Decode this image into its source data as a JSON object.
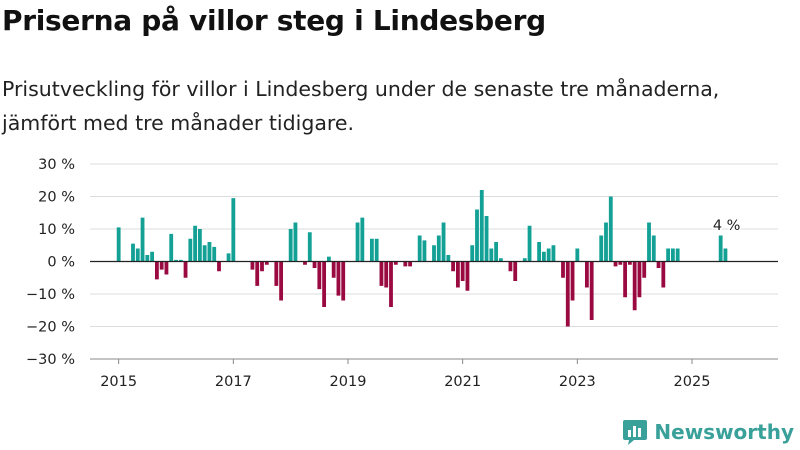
{
  "header": {
    "title": "Priserna på villor steg i Lindesberg",
    "subtitle": "Prisutveckling för villor i Lindesberg under de senaste tre månaderna, jämfört med tre månader tidigare."
  },
  "brand": {
    "name": "Newsworthy",
    "icon": "bar-chart-logo-icon",
    "color": "#3aa09a"
  },
  "colors": {
    "positive": "#13a196",
    "negative": "#9a0a41",
    "grid": "#dddddd",
    "zero_line": "#222222"
  },
  "chart_data": {
    "type": "bar",
    "ylim": [
      -30,
      30
    ],
    "yticks": [
      30,
      20,
      10,
      0,
      -10,
      -20,
      -30
    ],
    "ytick_labels": [
      "30 %",
      "20 %",
      "10 %",
      "0 %",
      "−10 %",
      "−20 %",
      "−30 %"
    ],
    "xlim": [
      "2014-07",
      "2026-07"
    ],
    "xticks": [
      "2015-01",
      "2017-01",
      "2019-01",
      "2021-01",
      "2023-01",
      "2025-01"
    ],
    "xtick_labels": [
      "2015",
      "2017",
      "2019",
      "2021",
      "2023",
      "2025"
    ],
    "grid": true,
    "annotation": {
      "x": "2025-07",
      "text": "4 %"
    },
    "series": [
      {
        "values": [
          {
            "x": "2015-01",
            "y": 10.5
          },
          {
            "x": "2015-04",
            "y": 5.5
          },
          {
            "x": "2015-05",
            "y": 4
          },
          {
            "x": "2015-06",
            "y": 13.5
          },
          {
            "x": "2015-07",
            "y": 2
          },
          {
            "x": "2015-08",
            "y": 3
          },
          {
            "x": "2015-09",
            "y": -5.5
          },
          {
            "x": "2015-10",
            "y": -2.5
          },
          {
            "x": "2015-11",
            "y": -4
          },
          {
            "x": "2015-12",
            "y": 8.5
          },
          {
            "x": "2016-01",
            "y": 0.5
          },
          {
            "x": "2016-02",
            "y": 0.5
          },
          {
            "x": "2016-03",
            "y": -5
          },
          {
            "x": "2016-04",
            "y": 7
          },
          {
            "x": "2016-05",
            "y": 11
          },
          {
            "x": "2016-06",
            "y": 10
          },
          {
            "x": "2016-07",
            "y": 5
          },
          {
            "x": "2016-08",
            "y": 6
          },
          {
            "x": "2016-09",
            "y": 4.5
          },
          {
            "x": "2016-10",
            "y": -3
          },
          {
            "x": "2016-12",
            "y": 2.5
          },
          {
            "x": "2017-01",
            "y": 19.5
          },
          {
            "x": "2017-05",
            "y": -2.5
          },
          {
            "x": "2017-06",
            "y": -7.5
          },
          {
            "x": "2017-07",
            "y": -3
          },
          {
            "x": "2017-08",
            "y": -1
          },
          {
            "x": "2017-10",
            "y": -7.5
          },
          {
            "x": "2017-11",
            "y": -12
          },
          {
            "x": "2018-01",
            "y": 10
          },
          {
            "x": "2018-02",
            "y": 12
          },
          {
            "x": "2018-04",
            "y": -1
          },
          {
            "x": "2018-05",
            "y": 9
          },
          {
            "x": "2018-06",
            "y": -2
          },
          {
            "x": "2018-07",
            "y": -8.5
          },
          {
            "x": "2018-08",
            "y": -14
          },
          {
            "x": "2018-09",
            "y": 1.5
          },
          {
            "x": "2018-10",
            "y": -5
          },
          {
            "x": "2018-11",
            "y": -10.5
          },
          {
            "x": "2018-12",
            "y": -12
          },
          {
            "x": "2019-03",
            "y": 12
          },
          {
            "x": "2019-04",
            "y": 13.5
          },
          {
            "x": "2019-06",
            "y": 7
          },
          {
            "x": "2019-07",
            "y": 7
          },
          {
            "x": "2019-08",
            "y": -7.5
          },
          {
            "x": "2019-09",
            "y": -8
          },
          {
            "x": "2019-10",
            "y": -14
          },
          {
            "x": "2019-11",
            "y": -1
          },
          {
            "x": "2020-01",
            "y": -1.5
          },
          {
            "x": "2020-02",
            "y": -1.5
          },
          {
            "x": "2020-04",
            "y": 8
          },
          {
            "x": "2020-05",
            "y": 6.5
          },
          {
            "x": "2020-07",
            "y": 5
          },
          {
            "x": "2020-08",
            "y": 8
          },
          {
            "x": "2020-09",
            "y": 12
          },
          {
            "x": "2020-10",
            "y": 2
          },
          {
            "x": "2020-11",
            "y": -3
          },
          {
            "x": "2020-12",
            "y": -8
          },
          {
            "x": "2021-01",
            "y": -6
          },
          {
            "x": "2021-02",
            "y": -9
          },
          {
            "x": "2021-03",
            "y": 5
          },
          {
            "x": "2021-04",
            "y": 16
          },
          {
            "x": "2021-05",
            "y": 22
          },
          {
            "x": "2021-06",
            "y": 14
          },
          {
            "x": "2021-07",
            "y": 4
          },
          {
            "x": "2021-08",
            "y": 6
          },
          {
            "x": "2021-09",
            "y": 1
          },
          {
            "x": "2021-11",
            "y": -3
          },
          {
            "x": "2021-12",
            "y": -6
          },
          {
            "x": "2022-02",
            "y": 1
          },
          {
            "x": "2022-03",
            "y": 11
          },
          {
            "x": "2022-05",
            "y": 6
          },
          {
            "x": "2022-06",
            "y": 3
          },
          {
            "x": "2022-07",
            "y": 4
          },
          {
            "x": "2022-08",
            "y": 5
          },
          {
            "x": "2022-10",
            "y": -5
          },
          {
            "x": "2022-11",
            "y": -20
          },
          {
            "x": "2022-12",
            "y": -12
          },
          {
            "x": "2023-01",
            "y": 4
          },
          {
            "x": "2023-03",
            "y": -8
          },
          {
            "x": "2023-04",
            "y": -18
          },
          {
            "x": "2023-06",
            "y": 8
          },
          {
            "x": "2023-07",
            "y": 12
          },
          {
            "x": "2023-08",
            "y": 20
          },
          {
            "x": "2023-09",
            "y": -1.5
          },
          {
            "x": "2023-10",
            "y": -1
          },
          {
            "x": "2023-11",
            "y": -11
          },
          {
            "x": "2023-12",
            "y": -1
          },
          {
            "x": "2024-01",
            "y": -15
          },
          {
            "x": "2024-02",
            "y": -11
          },
          {
            "x": "2024-03",
            "y": -5
          },
          {
            "x": "2024-04",
            "y": 12
          },
          {
            "x": "2024-05",
            "y": 8
          },
          {
            "x": "2024-06",
            "y": -2
          },
          {
            "x": "2024-07",
            "y": -8
          },
          {
            "x": "2024-08",
            "y": 4
          },
          {
            "x": "2024-09",
            "y": 4
          },
          {
            "x": "2024-10",
            "y": 4
          },
          {
            "x": "2025-07",
            "y": 8
          },
          {
            "x": "2025-08",
            "y": 4
          }
        ]
      }
    ]
  }
}
